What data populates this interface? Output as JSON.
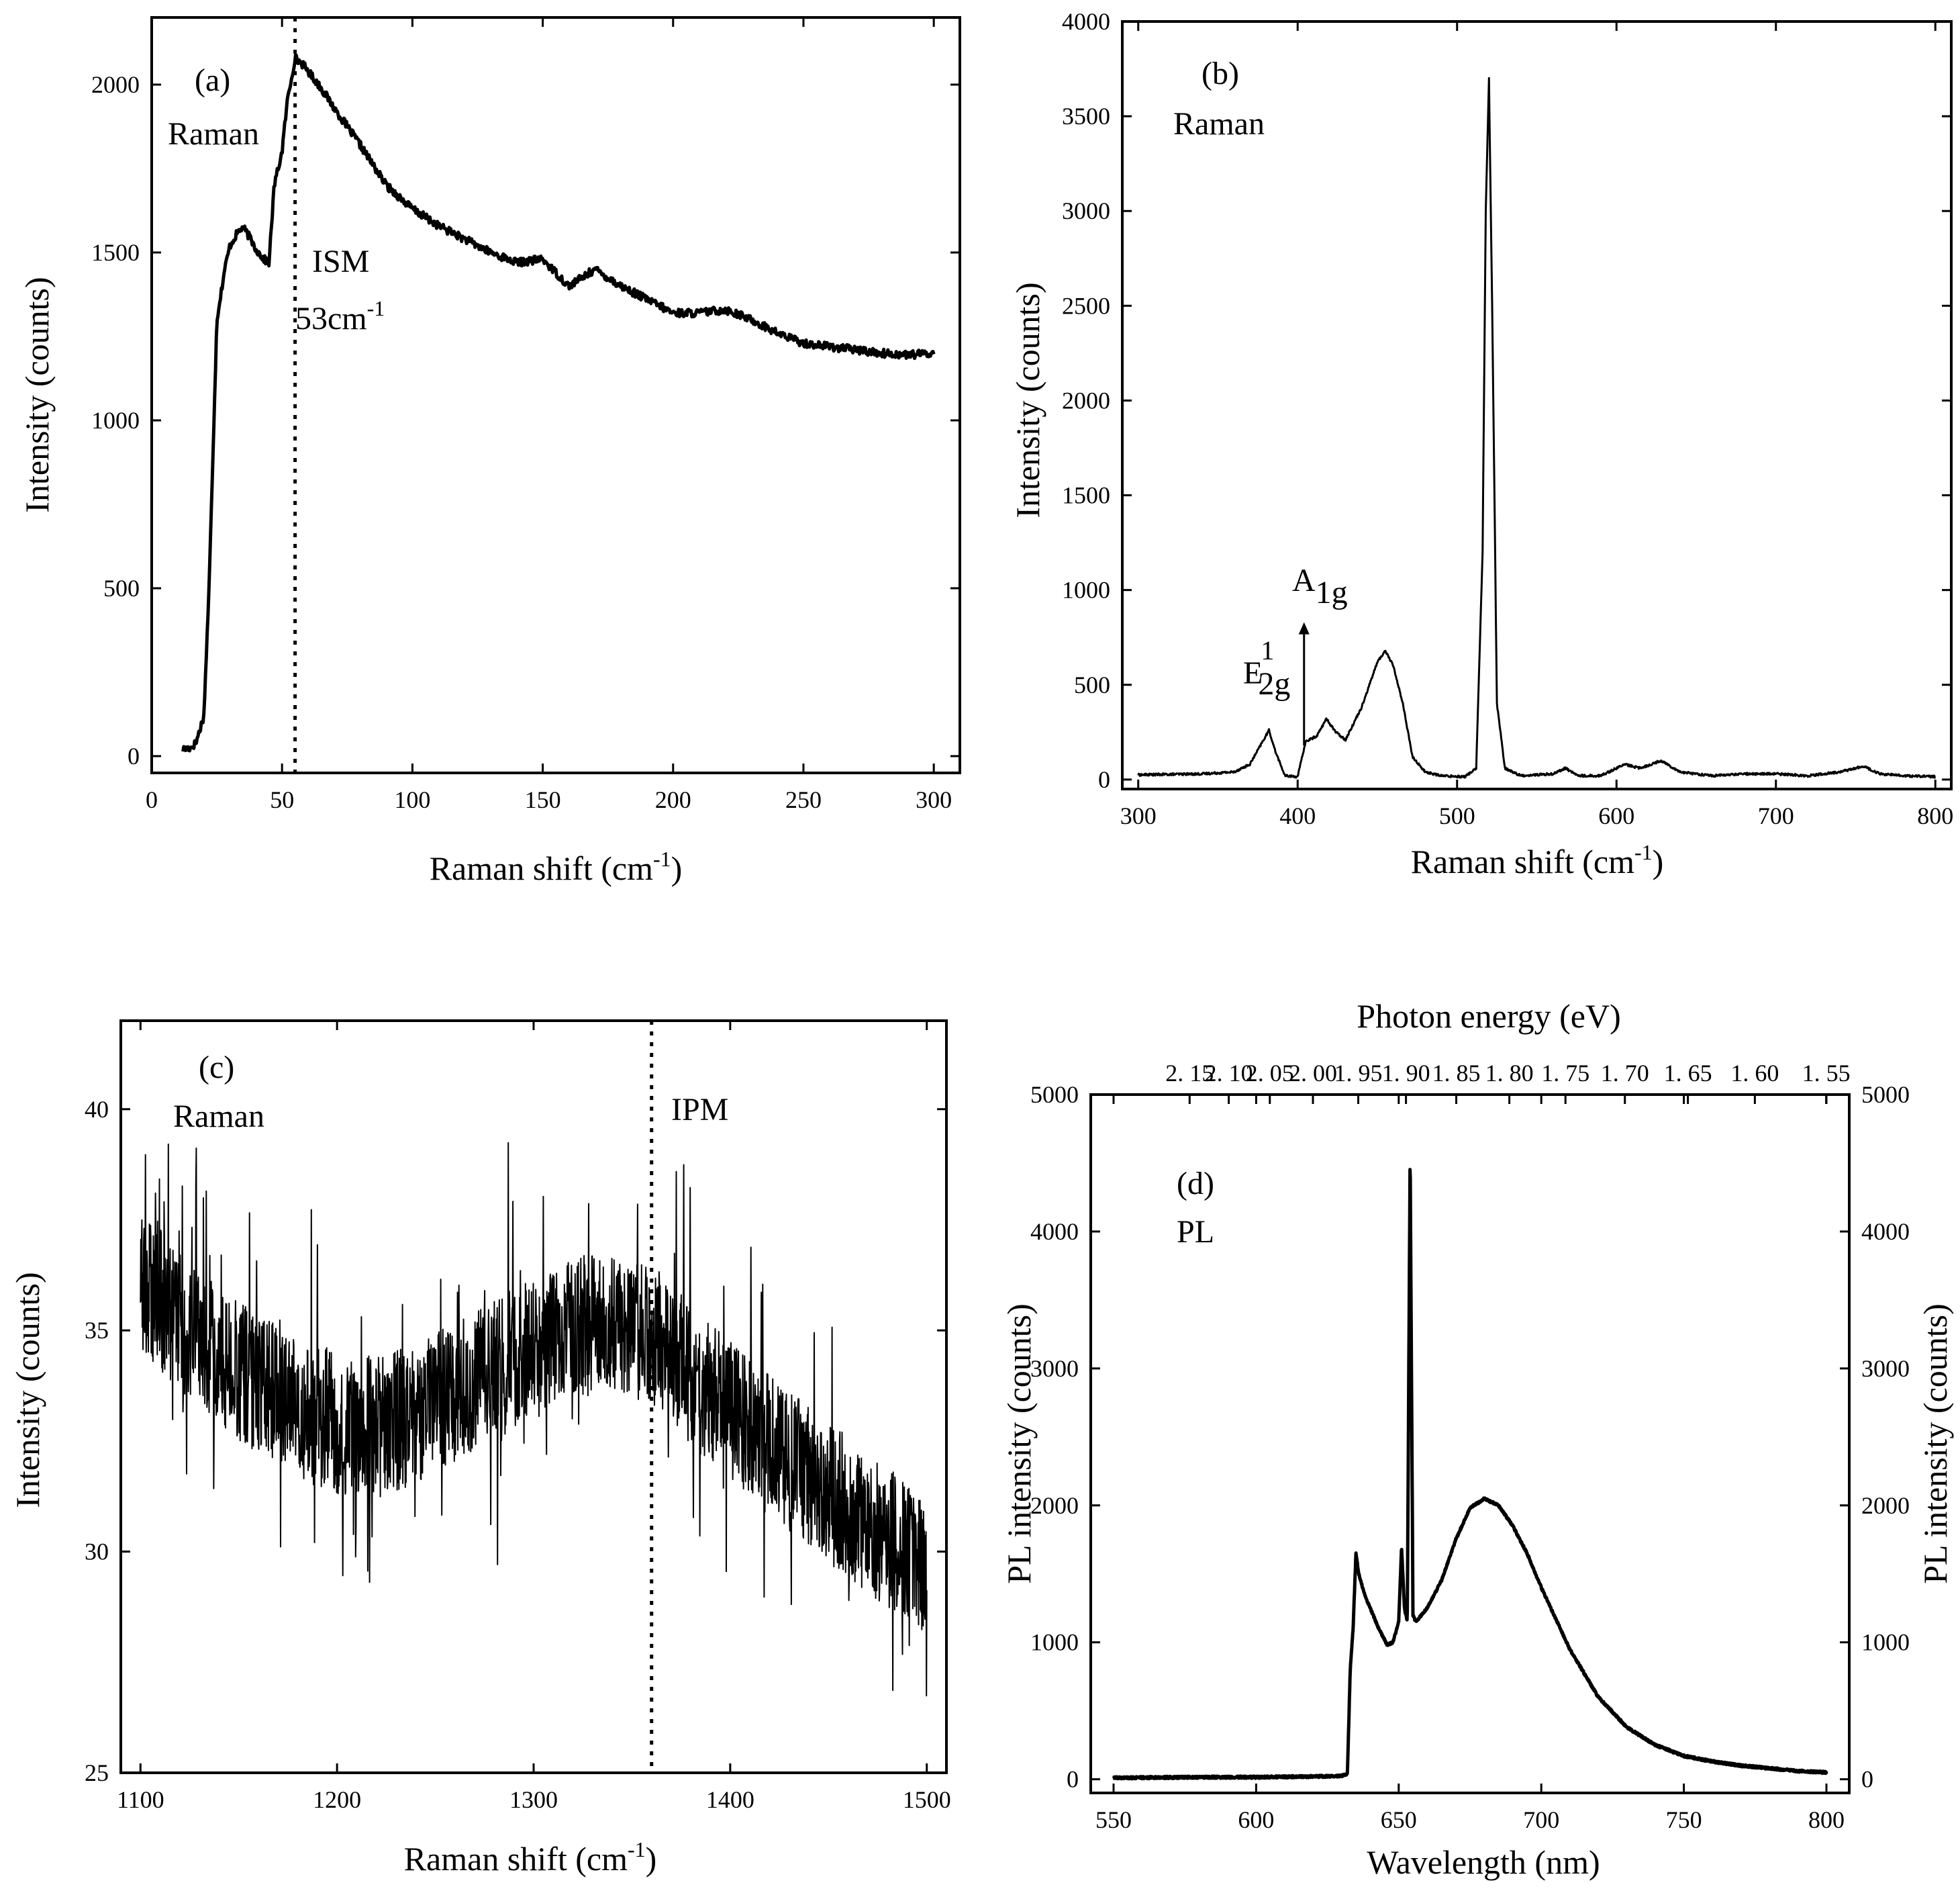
{
  "chart_data": [
    {
      "id": "a",
      "type": "line",
      "panel_label": "(a)",
      "annotations": [
        "Raman",
        "ISM"
      ],
      "peak_label": "53cm",
      "peak_sup": "-1",
      "xlabel": "Raman shift (cm",
      "xlabel_sup": "-1",
      "xlabel_end": ")",
      "ylabel": "Intensity (counts)",
      "xlim": [
        0,
        310
      ],
      "ylim": [
        -50,
        2200
      ],
      "xticks": [
        0,
        50,
        100,
        150,
        200,
        250,
        300
      ],
      "yticks": [
        0,
        500,
        1000,
        1500,
        2000
      ],
      "vline_x": 55,
      "series": [
        {
          "name": "Raman",
          "x": [
            12,
            15,
            17,
            20,
            22,
            25,
            28,
            30,
            33,
            35,
            38,
            40,
            43,
            45,
            47,
            50,
            52,
            55,
            58,
            60,
            65,
            70,
            80,
            90,
            100,
            110,
            120,
            130,
            140,
            150,
            160,
            170,
            180,
            190,
            200,
            210,
            220,
            230,
            240,
            250,
            260,
            270,
            280,
            290,
            300
          ],
          "y": [
            20,
            25,
            40,
            120,
            500,
            1300,
            1450,
            1520,
            1560,
            1575,
            1540,
            1510,
            1480,
            1470,
            1700,
            1800,
            1950,
            2080,
            2060,
            2040,
            1990,
            1930,
            1820,
            1700,
            1630,
            1580,
            1540,
            1500,
            1470,
            1480,
            1400,
            1450,
            1400,
            1360,
            1320,
            1320,
            1330,
            1300,
            1260,
            1230,
            1220,
            1210,
            1200,
            1195,
            1200
          ]
        }
      ]
    },
    {
      "id": "b",
      "type": "line",
      "panel_label": "(b)",
      "annotations": [
        "Raman"
      ],
      "e_label": {
        "base": "E",
        "sup": "1",
        "sub": "2g"
      },
      "a_label": {
        "base": "A",
        "sub": "1g"
      },
      "xlabel": "Raman shift (cm",
      "xlabel_sup": "-1",
      "xlabel_end": ")",
      "ylabel": "Intensity (counts)",
      "xlim": [
        290,
        810
      ],
      "ylim": [
        -50,
        4000
      ],
      "xticks": [
        300,
        400,
        500,
        600,
        700,
        800
      ],
      "yticks": [
        0,
        500,
        1000,
        1500,
        2000,
        2500,
        3000,
        3500,
        4000
      ],
      "arrow_x": 404,
      "series": [
        {
          "name": "Raman",
          "x": [
            300,
            340,
            360,
            370,
            378,
            382,
            386,
            392,
            400,
            405,
            412,
            418,
            424,
            430,
            440,
            450,
            455,
            460,
            466,
            472,
            480,
            490,
            505,
            512,
            516,
            518,
            520,
            522,
            525,
            530,
            540,
            560,
            568,
            576,
            590,
            605,
            615,
            628,
            640,
            660,
            680,
            700,
            720,
            740,
            755,
            765,
            780,
            800
          ],
          "y": [
            25,
            30,
            40,
            80,
            200,
            260,
            150,
            20,
            15,
            200,
            230,
            320,
            250,
            210,
            380,
            620,
            680,
            600,
            400,
            120,
            40,
            20,
            15,
            60,
            1200,
            3000,
            3700,
            2500,
            400,
            60,
            20,
            30,
            60,
            20,
            20,
            80,
            60,
            100,
            40,
            20,
            30,
            30,
            20,
            40,
            70,
            30,
            20,
            15
          ]
        }
      ]
    },
    {
      "id": "c",
      "type": "line",
      "panel_label": "(c)",
      "annotations": [
        "Raman",
        "IPM"
      ],
      "xlabel": "Raman shift (cm",
      "xlabel_sup": "-1",
      "xlabel_end": ")",
      "ylabel": "Intensity (counts)",
      "xlim": [
        1090,
        1510
      ],
      "ylim": [
        25,
        42
      ],
      "xticks": [
        1100,
        1200,
        1300,
        1400,
        1500
      ],
      "yticks": [
        25,
        30,
        35,
        40
      ],
      "vline_x": 1360,
      "series": [
        {
          "name": "Raman",
          "x": [
            1100,
            1120,
            1140,
            1160,
            1180,
            1200,
            1220,
            1240,
            1260,
            1280,
            1300,
            1320,
            1340,
            1360,
            1380,
            1400,
            1420,
            1440,
            1460,
            1480,
            1500
          ],
          "y": [
            36.2,
            35.2,
            34.4,
            33.8,
            33.2,
            32.9,
            32.8,
            33.1,
            33.6,
            34.1,
            34.6,
            35.0,
            35.2,
            34.9,
            34.0,
            33.2,
            32.4,
            31.7,
            31.0,
            30.3,
            29.6
          ]
        }
      ]
    },
    {
      "id": "d",
      "type": "line",
      "panel_label": "(d)",
      "annotations": [
        "PL"
      ],
      "top_axis_label": "Photon energy (eV)",
      "top_ticks": [
        "2. 15",
        "2. 10",
        "2. 05",
        "2. 00",
        "1. 95",
        "1. 90",
        "1. 85",
        "1. 80",
        "1. 75",
        "1. 70",
        "1. 65",
        "1. 60",
        "1. 55"
      ],
      "top_tick_values": [
        2.15,
        2.1,
        2.05,
        2.0,
        1.95,
        1.9,
        1.85,
        1.8,
        1.75,
        1.7,
        1.65,
        1.6,
        1.55
      ],
      "xlabel": "Wavelength (nm)",
      "ylabel": "PL intensity (counts)",
      "ylabel_right": "PL intensity (counts)",
      "xlim": [
        542,
        808
      ],
      "ylim": [
        -100,
        5000
      ],
      "xticks": [
        550,
        600,
        650,
        700,
        750,
        800
      ],
      "yticks": [
        0,
        1000,
        2000,
        3000,
        4000,
        5000
      ],
      "series": [
        {
          "name": "PL",
          "x": [
            550,
            580,
            600,
            620,
            630,
            632,
            633,
            634,
            635,
            636,
            638,
            640,
            643,
            646,
            648,
            650,
            651,
            652,
            653,
            654,
            655,
            656,
            660,
            665,
            670,
            675,
            680,
            685,
            690,
            695,
            700,
            710,
            720,
            730,
            740,
            750,
            760,
            770,
            780,
            790,
            800
          ],
          "y": [
            10,
            15,
            15,
            20,
            25,
            40,
            800,
            1100,
            1650,
            1500,
            1350,
            1250,
            1100,
            980,
            1000,
            1150,
            1700,
            1250,
            1150,
            4600,
            1200,
            1150,
            1250,
            1450,
            1750,
            1980,
            2050,
            2000,
            1850,
            1650,
            1400,
            950,
            600,
            380,
            250,
            170,
            130,
            100,
            80,
            60,
            50
          ]
        }
      ]
    }
  ]
}
